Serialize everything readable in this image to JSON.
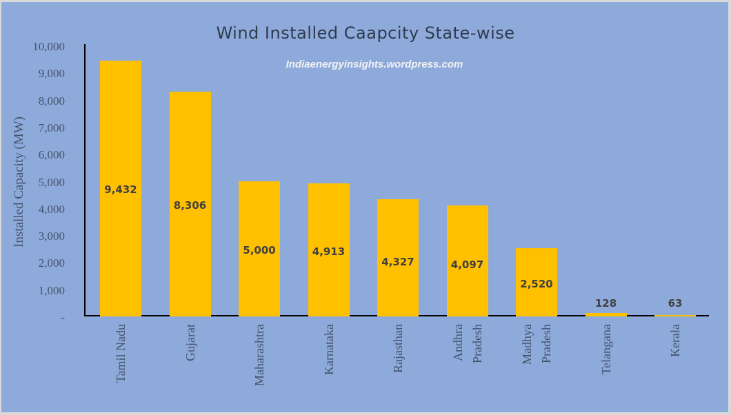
{
  "chart_data": {
    "type": "bar",
    "title": "Wind Installed Caapcity State-wise",
    "subtitle": "Indiaenergyinsights.wordpress.com",
    "xlabel": "",
    "ylabel": "Installed Capacity (MW)",
    "ylim": [
      0,
      10000
    ],
    "yticks": [
      "-",
      "1,000",
      "2,000",
      "3,000",
      "4,000",
      "5,000",
      "6,000",
      "7,000",
      "8,000",
      "9,000",
      "10,000"
    ],
    "categories": [
      "Tamil Nadu",
      "Gujarat",
      "Maharashtra",
      "Karnataka",
      "Rajasthan",
      "Andhra Pradesh",
      "Madhya Pradesh",
      "Telangana",
      "Kerala"
    ],
    "values": [
      9432,
      8306,
      5000,
      4913,
      4327,
      4097,
      2520,
      128,
      63
    ],
    "data_labels": [
      "9,432",
      "8,306",
      "5,000",
      "4,913",
      "4,327",
      "4,097",
      "2,520",
      "128",
      "63"
    ],
    "grid": false,
    "legend": "none",
    "bar_color": "#ffc000",
    "background_color": "#8eaadb"
  },
  "x_labels": [
    [
      "Tamil Nadu"
    ],
    [
      "Gujarat"
    ],
    [
      "Maharashtra"
    ],
    [
      "Karnataka"
    ],
    [
      "Rajasthan"
    ],
    [
      "Andhra",
      "Pradesh"
    ],
    [
      "Madhya",
      "Pradesh"
    ],
    [
      "Telangana"
    ],
    [
      "Kerala"
    ]
  ]
}
